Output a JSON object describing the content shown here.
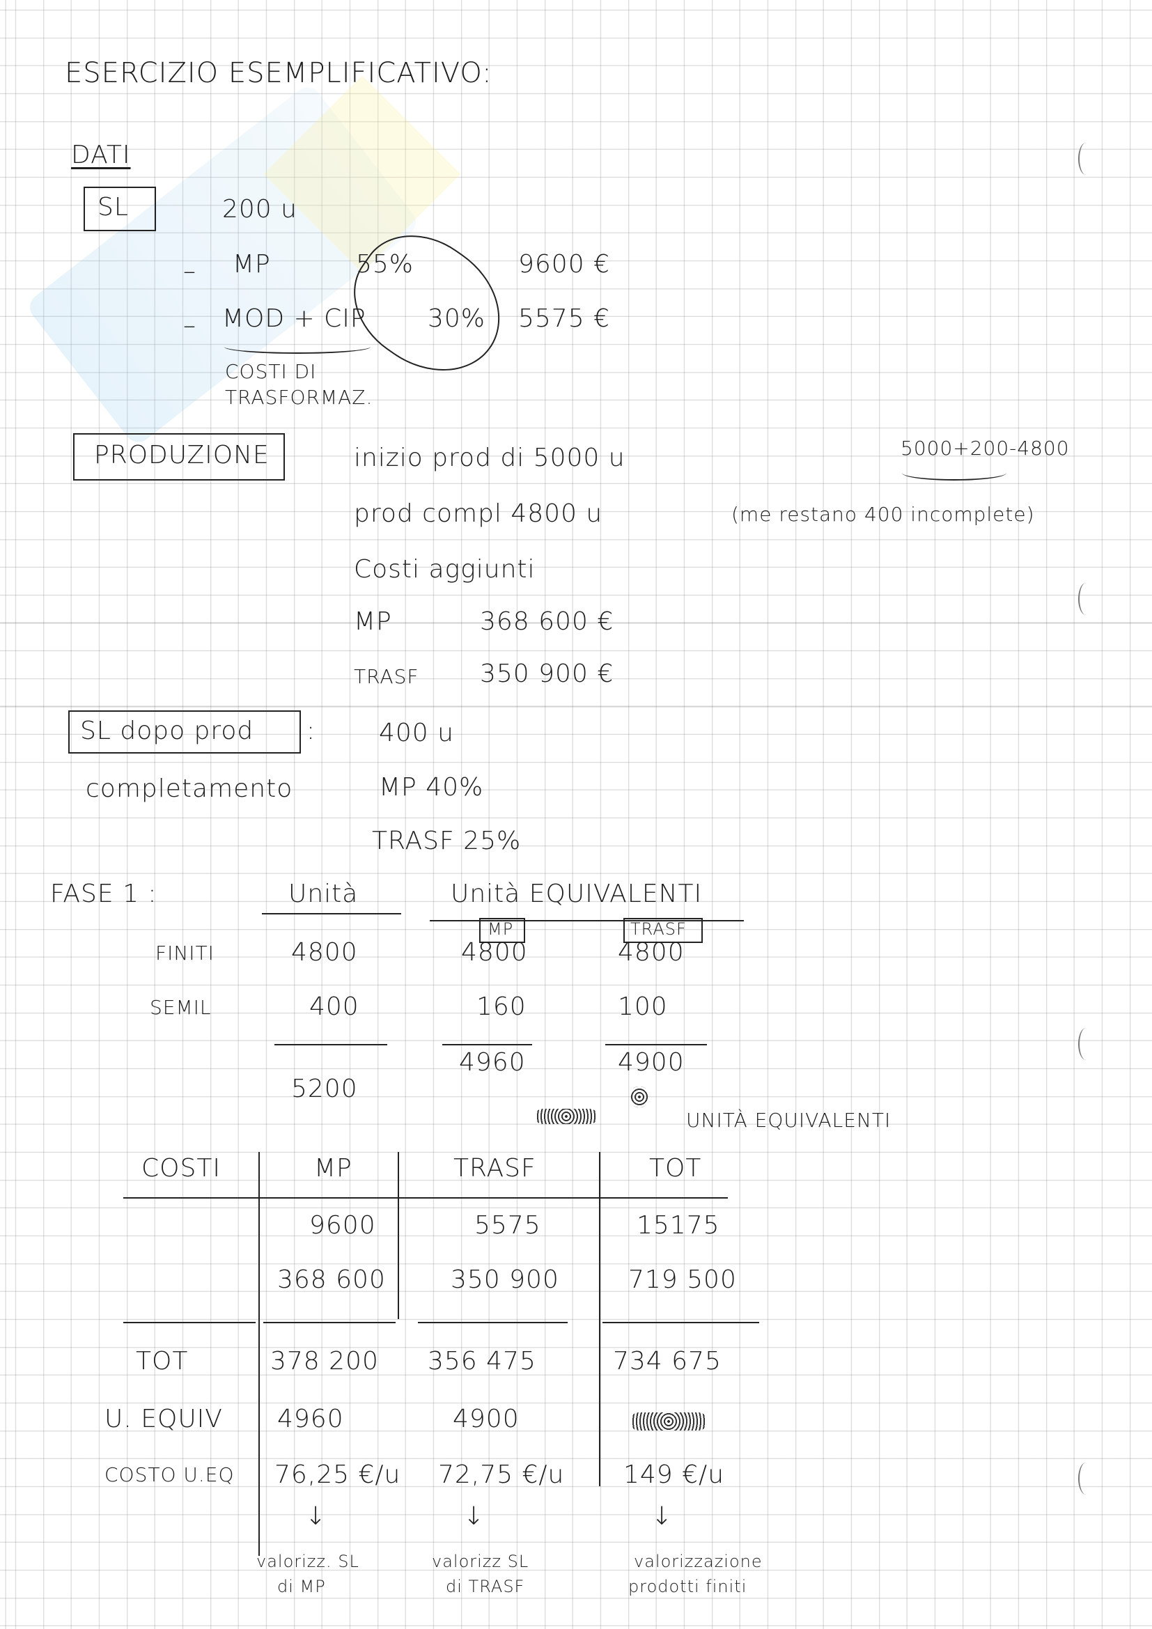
{
  "title": "ESERCIZIO ESEMPLIFICATIVO:",
  "dati": {
    "heading": "DATI",
    "sl_label": "SL",
    "units": "200 u",
    "rows": [
      {
        "dash": "–",
        "label": "MP",
        "pct": "55%",
        "value": "9600 €"
      },
      {
        "dash": "–",
        "label": "MOD + CIP",
        "pct": "30%",
        "value": "5575 €"
      }
    ],
    "note_line1": "COSTI DI",
    "note_line2": "TRASFORMAZ."
  },
  "produzione": {
    "label": "PRODUZIONE",
    "inizio": "inizio prod di 5000 u",
    "calc": "5000+200-4800",
    "completa": "prod compl 4800 u",
    "restano": "(me restano 400 incomplete)",
    "costi_aggiunti": "Costi aggiunti",
    "mp_label": "MP",
    "mp_value": "368 600 €",
    "trasf_label": "TRASF",
    "trasf_value": "350 900 €"
  },
  "sl_dopo": {
    "label": "SL dopo prod",
    "colon": ":",
    "units": "400 u",
    "completamento": "completamento",
    "mp": "MP 40%",
    "trasf": "TRASF 25%"
  },
  "fase1": {
    "label": "FASE 1 :",
    "col_unita": "Unità",
    "col_equiv": "Unità EQUIVALENTI",
    "sub_mp": "MP",
    "sub_trasf": "TRASF",
    "rows": [
      {
        "label": "FINITI",
        "unita": "4800",
        "mp": "4800",
        "trasf": "4800"
      },
      {
        "label": "SEMIL",
        "unita": "400",
        "mp": "160",
        "trasf": "100"
      }
    ],
    "totals": {
      "unita": "5200",
      "mp": "4960",
      "trasf": "4900"
    },
    "annotation": "UNITÀ EQUIVALENTI"
  },
  "costi_table": {
    "headers": [
      "COSTI",
      "MP",
      "TRASF",
      "TOT"
    ],
    "rows": [
      {
        "label": "",
        "mp": "9600",
        "trasf": "5575",
        "tot": "15175"
      },
      {
        "label": "",
        "mp": "368 600",
        "trasf": "350 900",
        "tot": "719 500"
      },
      {
        "label": "TOT",
        "mp": "378 200",
        "trasf": "356 475",
        "tot": "734 675"
      },
      {
        "label": "U. EQUIV",
        "mp": "4960",
        "trasf": "4900",
        "tot": ""
      },
      {
        "label": "COSTO U.EQ",
        "mp": "76,25 €/u",
        "trasf": "72,75 €/u",
        "tot": "149 €/u"
      }
    ],
    "notes": [
      {
        "line1": "valorizz. SL",
        "line2": "di MP"
      },
      {
        "line1": "valorizz SL",
        "line2": "di TRASF"
      },
      {
        "line1": "valorizzazione",
        "line2": "prodotti finiti"
      }
    ]
  }
}
